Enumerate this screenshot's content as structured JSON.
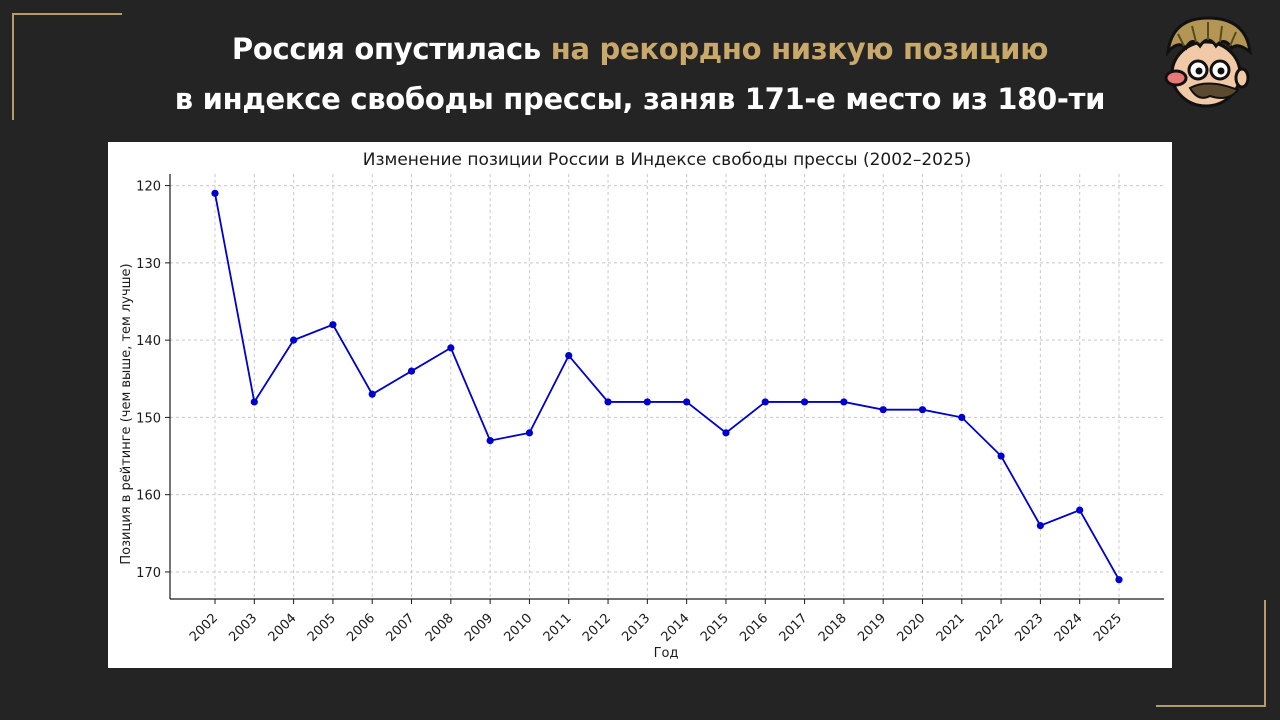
{
  "headline": {
    "line1_part1": "Россия опустилась ",
    "line1_accent": "на рекордно низкую позицию",
    "line2": "в индексе свободы прессы, заняв 171-е место из 180-ти"
  },
  "colors": {
    "background": "#242424",
    "accent": "#c8a86b",
    "line": "#0000cc"
  },
  "avatar": {
    "icon": "cartoon-face-icon"
  },
  "chart_data": {
    "type": "line",
    "title": "Изменение позиции России в Индексе свободы прессы (2002–2025)",
    "xlabel": "Год",
    "ylabel": "Позиция в рейтинге (чем выше, тем лучше)",
    "y_inverted": true,
    "ylim": [
      173.5,
      118.5
    ],
    "yticks": [
      120,
      130,
      140,
      150,
      160,
      170
    ],
    "grid": true,
    "categories": [
      "2002",
      "2003",
      "2004",
      "2005",
      "2006",
      "2007",
      "2008",
      "2009",
      "2010",
      "2011",
      "2012",
      "2013",
      "2014",
      "2015",
      "2016",
      "2017",
      "2018",
      "2019",
      "2020",
      "2021",
      "2022",
      "2023",
      "2024",
      "2025"
    ],
    "values": [
      121,
      148,
      140,
      138,
      147,
      144,
      141,
      153,
      152,
      142,
      148,
      148,
      148,
      152,
      148,
      148,
      148,
      149,
      149,
      150,
      155,
      164,
      162,
      171
    ]
  }
}
